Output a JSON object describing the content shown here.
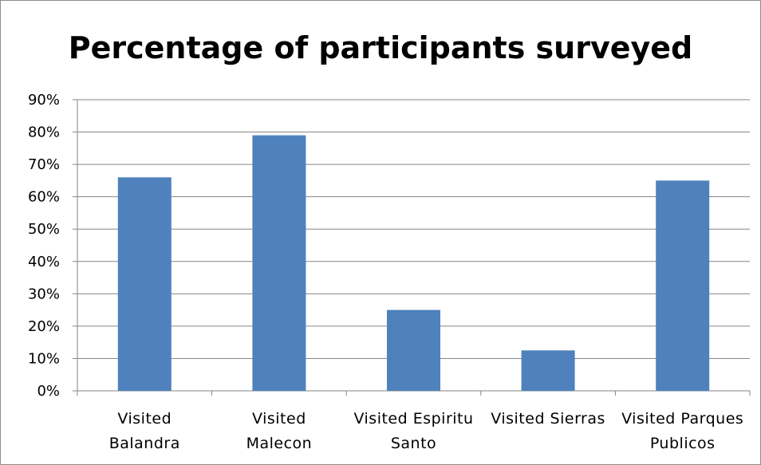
{
  "chart_data": {
    "type": "bar",
    "title": "Percentage of participants surveyed",
    "categories": [
      [
        "Visited",
        "Balandra"
      ],
      [
        "Visited",
        "Malecon"
      ],
      [
        "Visited Espiritu",
        "Santo"
      ],
      [
        "Visited Sierras"
      ],
      [
        "Visited Parques",
        "Publicos"
      ]
    ],
    "values": [
      0.66,
      0.79,
      0.25,
      0.125,
      0.65
    ],
    "ylim": [
      0,
      0.9
    ],
    "yticks": [
      0,
      0.1,
      0.2,
      0.3,
      0.4,
      0.5,
      0.6,
      0.7,
      0.8,
      0.9
    ],
    "ytick_labels": [
      "0%",
      "10%",
      "20%",
      "30%",
      "40%",
      "50%",
      "60%",
      "70%",
      "80%",
      "90%"
    ],
    "grid": true,
    "legend": "none",
    "colors": {
      "bar": "#4f81bd",
      "grid": "#868686",
      "axis": "#868686"
    }
  }
}
